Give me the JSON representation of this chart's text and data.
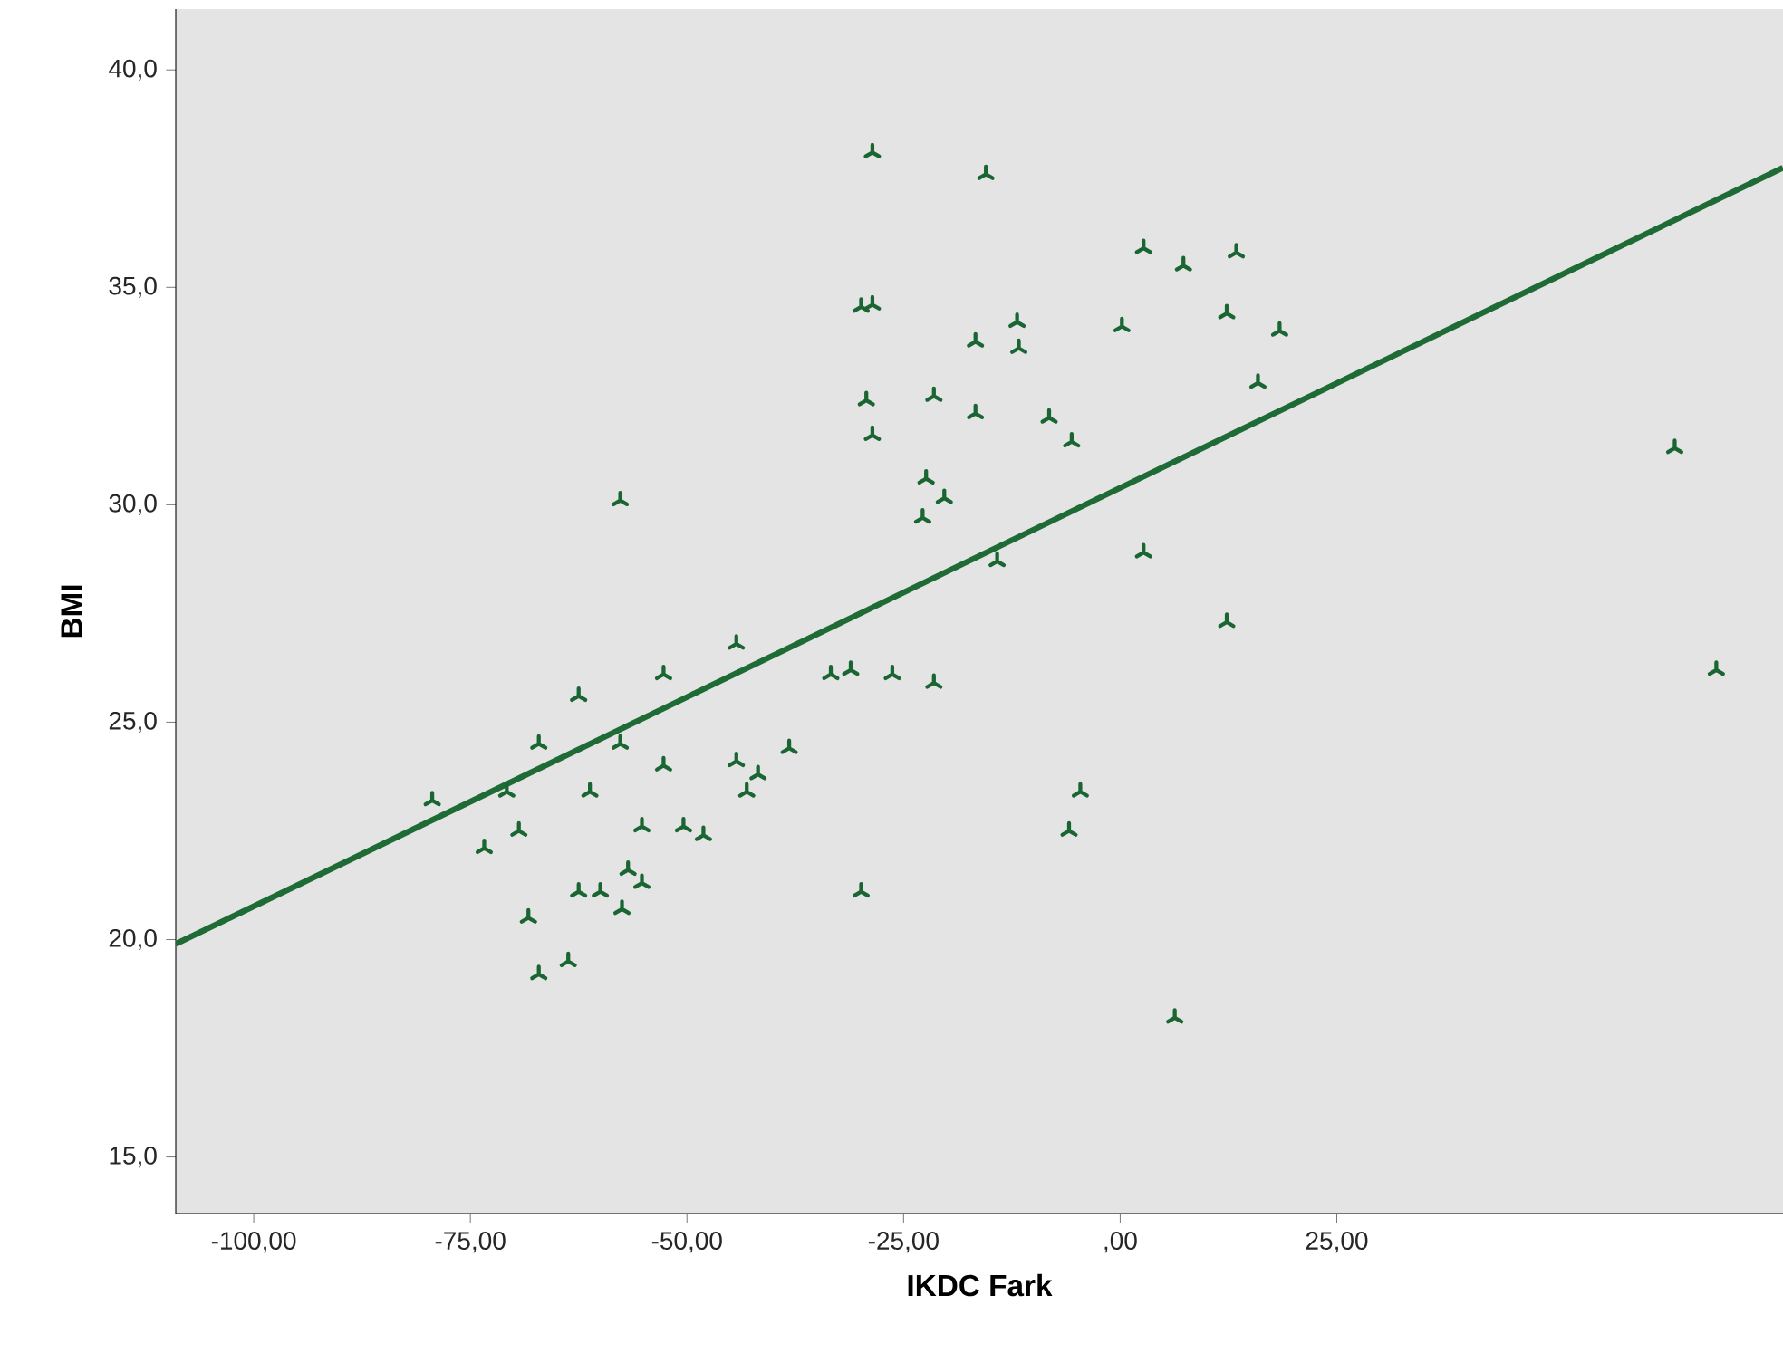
{
  "chart_data": {
    "type": "scatter",
    "xlabel": "IKDC Fark",
    "ylabel": "BMI",
    "xlim": [
      -109,
      76.5
    ],
    "ylim": [
      13.7,
      41.4
    ],
    "xticks": [
      {
        "value": -100,
        "label": "-100,00"
      },
      {
        "value": -75,
        "label": "-75,00"
      },
      {
        "value": -50,
        "label": "-50,00"
      },
      {
        "value": -25,
        "label": "-25,00"
      },
      {
        "value": 0,
        "label": ",00"
      },
      {
        "value": 25,
        "label": "25,00"
      }
    ],
    "yticks": [
      {
        "value": 15,
        "label": "15,0"
      },
      {
        "value": 20,
        "label": "20,0"
      },
      {
        "value": 25,
        "label": "25,0"
      },
      {
        "value": 30,
        "label": "30,0"
      },
      {
        "value": 35,
        "label": "35,0"
      },
      {
        "value": 40,
        "label": "40,0"
      }
    ],
    "grid": false,
    "series": [
      {
        "marker": "cross",
        "color": "#1a6632",
        "x": [
          -79.4,
          -73.4,
          -69.4,
          -70.8,
          -67.1,
          -62.5,
          -52.7,
          -44.3,
          -57.7,
          -61.2,
          -52.7,
          -44.3,
          -41.8,
          -43.1,
          -38.2,
          -33.4,
          -31.1,
          -29.9,
          -55.2,
          -50.4,
          -48.1,
          -56.8,
          -55.2,
          -62.5,
          -60.0,
          -57.5,
          -68.3,
          -63.7,
          -67.1,
          -57.7,
          -28.6,
          -15.5,
          2.7,
          7.3,
          13.4,
          -29.9,
          -28.6,
          -11.9,
          -16.7,
          -11.7,
          0.2,
          12.3,
          -29.3,
          -21.5,
          -16.7,
          -8.2,
          -5.6,
          -28.6,
          -22.4,
          -20.3,
          -22.8,
          15.9,
          18.4,
          -14.2,
          2.7,
          12.3,
          64.0,
          68.8,
          6.3,
          -5.9,
          -4.6,
          -21.5,
          -26.3
        ],
        "values": [
          23.2,
          22.1,
          22.5,
          23.4,
          24.5,
          25.6,
          26.1,
          26.8,
          24.5,
          23.4,
          24.0,
          24.1,
          23.8,
          23.4,
          24.4,
          26.1,
          26.2,
          21.1,
          22.6,
          22.6,
          22.4,
          21.6,
          21.3,
          21.1,
          21.1,
          20.7,
          20.5,
          19.5,
          19.2,
          30.1,
          38.1,
          37.6,
          35.9,
          35.5,
          35.8,
          34.55,
          34.6,
          34.2,
          33.75,
          33.6,
          34.1,
          34.4,
          32.4,
          32.5,
          32.1,
          32.0,
          31.45,
          31.6,
          30.6,
          30.15,
          29.7,
          32.8,
          34.0,
          28.7,
          28.9,
          27.3,
          31.3,
          26.2,
          18.2,
          22.5,
          23.4,
          25.9,
          26.1
        ]
      },
      {
        "type": "line",
        "marker": "none",
        "color": "#1e6b35",
        "x": [
          -109,
          76.5
        ],
        "values": [
          19.9,
          37.75
        ]
      }
    ]
  }
}
